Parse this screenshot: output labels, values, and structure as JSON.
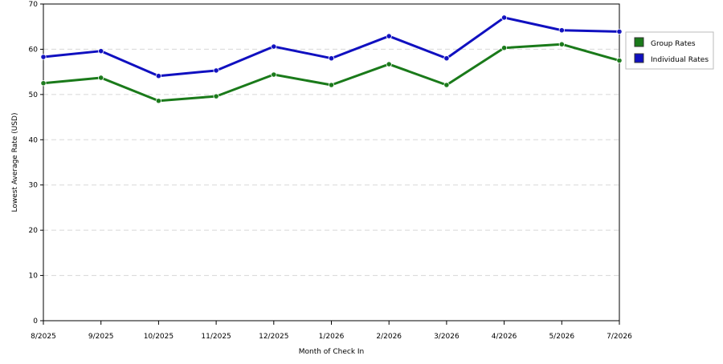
{
  "chart_data": {
    "type": "line",
    "title": "",
    "xlabel": "Month of Check In",
    "ylabel": "Lowest Average Rate (USD)",
    "ylim": [
      0,
      70
    ],
    "yticks": [
      0,
      10,
      20,
      30,
      40,
      50,
      60,
      70
    ],
    "grid": true,
    "legend_position": "right",
    "categories": [
      "8/2025",
      "9/2025",
      "10/2025",
      "11/2025",
      "12/2025",
      "1/2026",
      "2/2026",
      "3/2026",
      "4/2026",
      "5/2026",
      "7/2026"
    ],
    "series": [
      {
        "name": "Group Rates",
        "color": "#1a7a1a",
        "values": [
          52.5,
          53.7,
          48.6,
          49.6,
          54.4,
          52.1,
          56.7,
          52.1,
          60.3,
          61.1,
          57.5
        ]
      },
      {
        "name": "Individual Rates",
        "color": "#1010c0",
        "values": [
          58.3,
          59.6,
          54.1,
          55.3,
          60.6,
          58.0,
          62.9,
          58.0,
          67.0,
          64.2,
          63.9
        ]
      }
    ]
  }
}
